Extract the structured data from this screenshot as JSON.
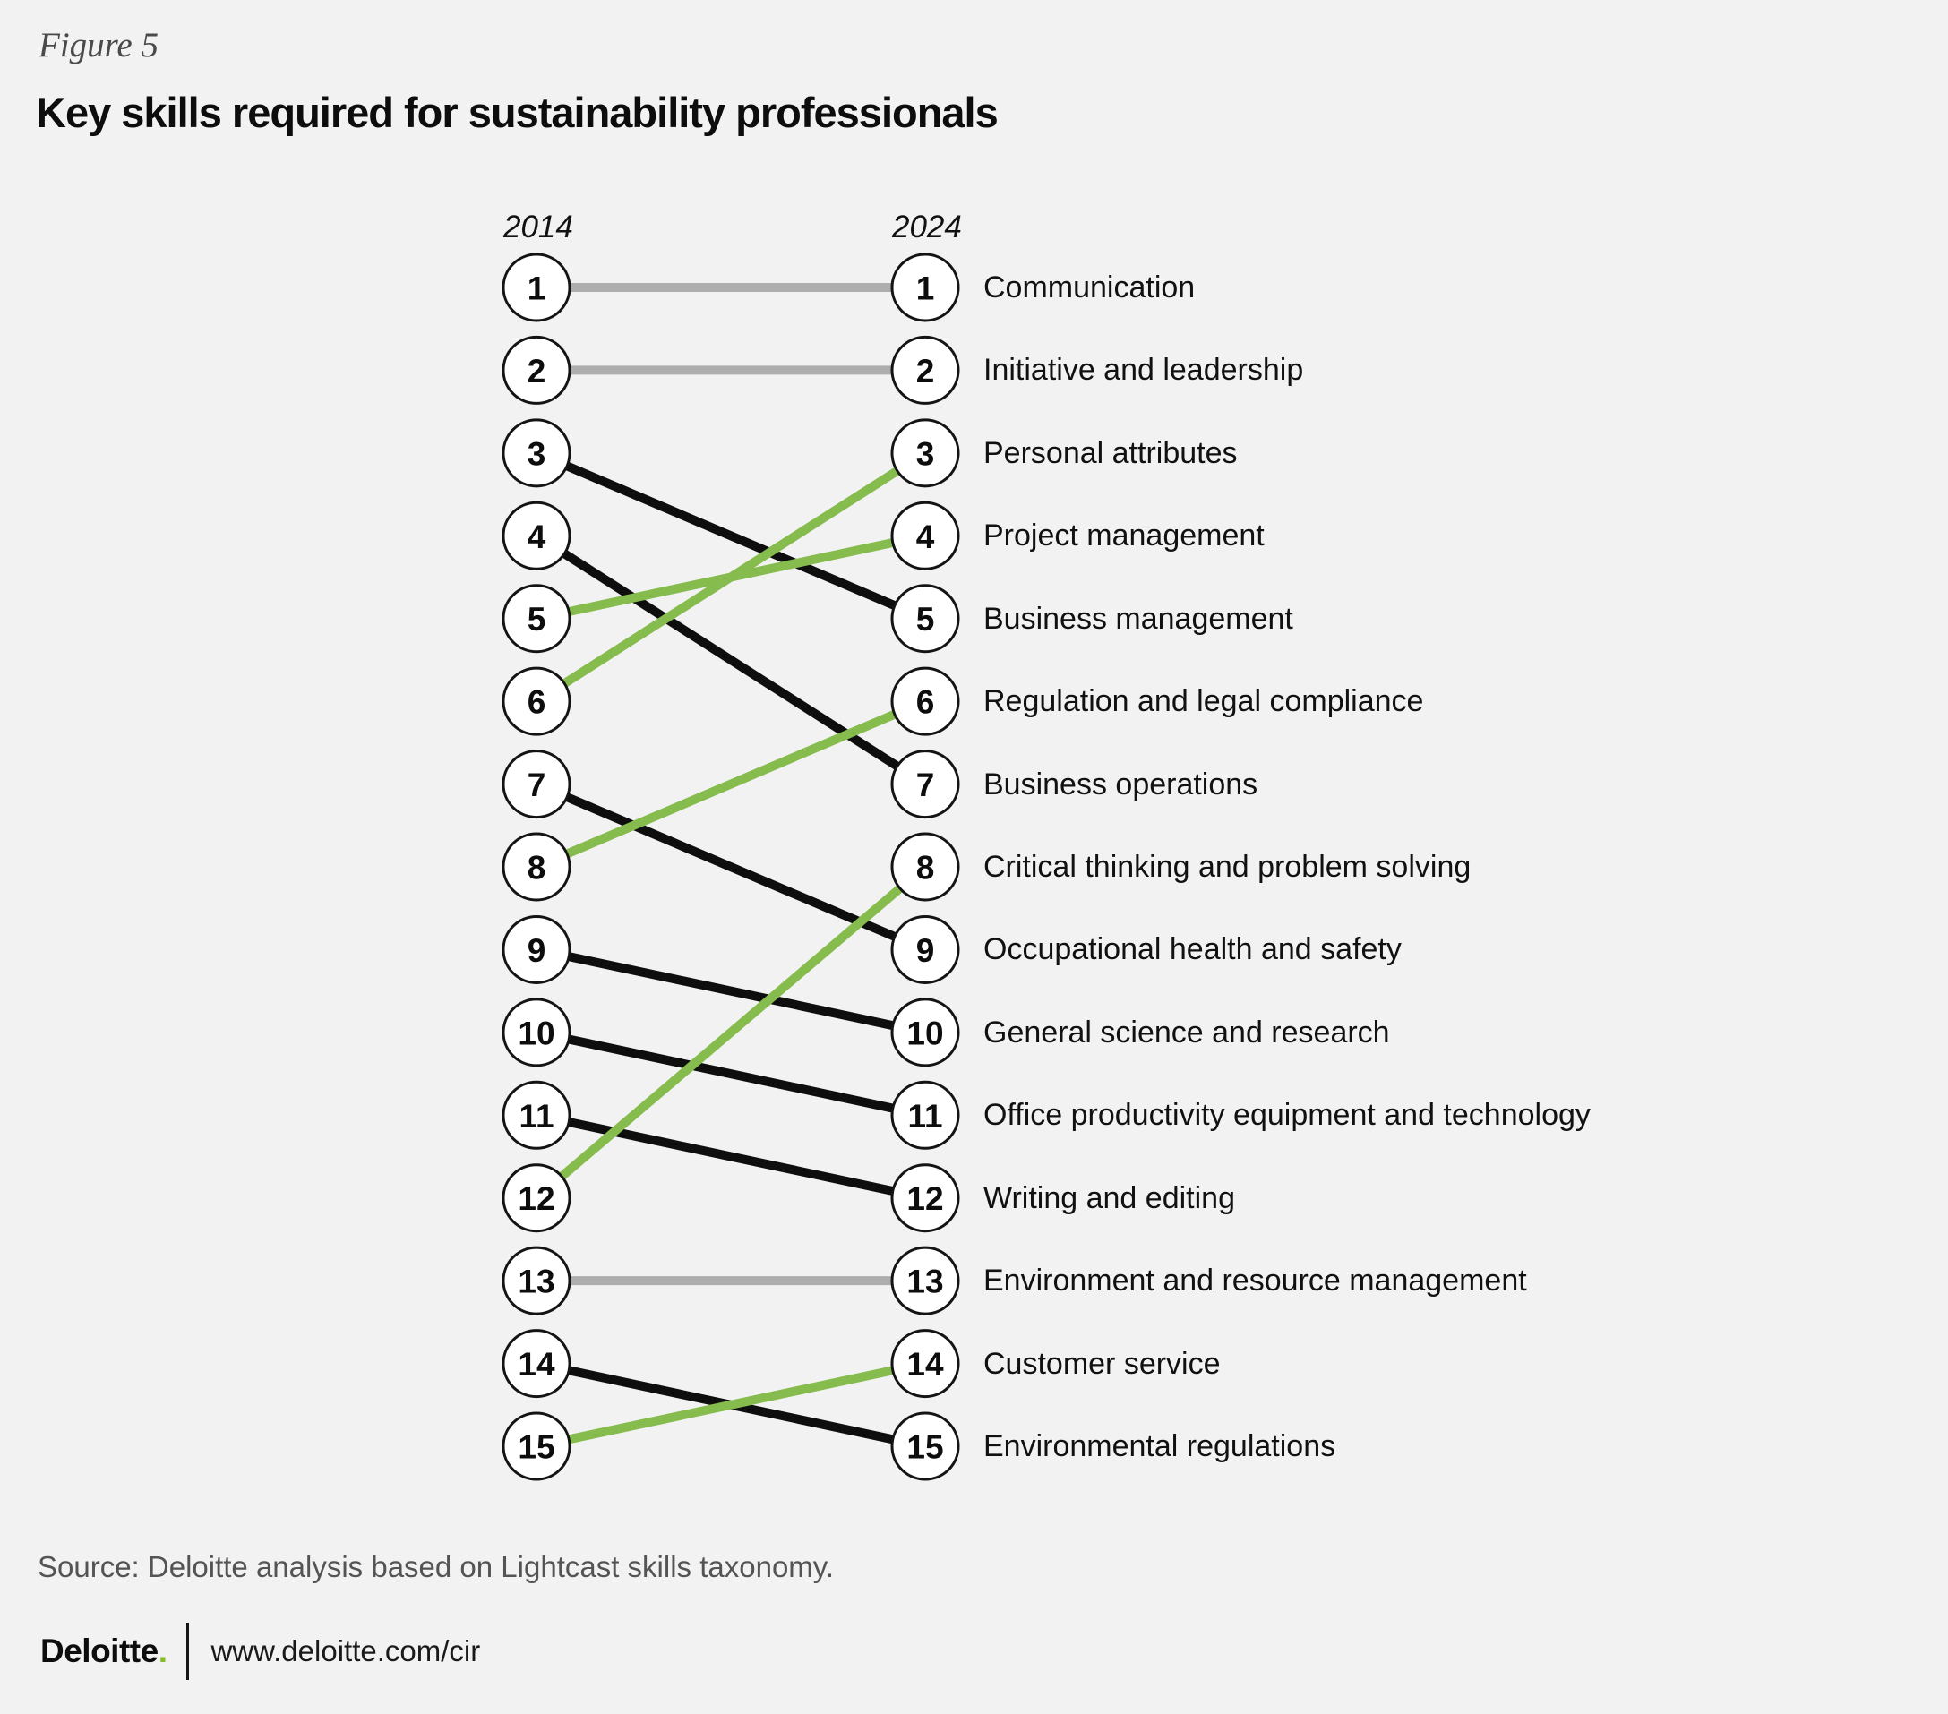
{
  "figure_label": "Figure 5",
  "title": "Key skills required for sustainability professionals",
  "chart_data": {
    "type": "slope",
    "left_year": "2014",
    "right_year": "2024",
    "description": "Skill rank in 2014 vs rank in 2024; green = rank improved, black = rank declined, gray = unchanged",
    "skills": [
      {
        "label": "Communication",
        "rank_2014": 1,
        "rank_2024": 1,
        "trend": "same"
      },
      {
        "label": "Initiative and leadership",
        "rank_2014": 2,
        "rank_2024": 2,
        "trend": "same"
      },
      {
        "label": "Personal attributes",
        "rank_2014": 6,
        "rank_2024": 3,
        "trend": "up"
      },
      {
        "label": "Project management",
        "rank_2014": 5,
        "rank_2024": 4,
        "trend": "up"
      },
      {
        "label": "Business management",
        "rank_2014": 3,
        "rank_2024": 5,
        "trend": "down"
      },
      {
        "label": "Regulation and legal compliance",
        "rank_2014": 8,
        "rank_2024": 6,
        "trend": "up"
      },
      {
        "label": "Business operations",
        "rank_2014": 4,
        "rank_2024": 7,
        "trend": "down"
      },
      {
        "label": "Critical thinking and problem solving",
        "rank_2014": 12,
        "rank_2024": 8,
        "trend": "up"
      },
      {
        "label": "Occupational health and safety",
        "rank_2014": 7,
        "rank_2024": 9,
        "trend": "down"
      },
      {
        "label": "General science and research",
        "rank_2014": 9,
        "rank_2024": 10,
        "trend": "down"
      },
      {
        "label": "Office productivity equipment and technology",
        "rank_2014": 10,
        "rank_2024": 11,
        "trend": "down"
      },
      {
        "label": "Writing and editing",
        "rank_2014": 11,
        "rank_2024": 12,
        "trend": "down"
      },
      {
        "label": "Environment and resource management",
        "rank_2014": 13,
        "rank_2024": 13,
        "trend": "same"
      },
      {
        "label": "Customer service",
        "rank_2014": 15,
        "rank_2024": 14,
        "trend": "up"
      },
      {
        "label": "Environmental regulations",
        "rank_2014": 14,
        "rank_2024": 15,
        "trend": "down"
      }
    ],
    "colors": {
      "improved": "#86bc4e",
      "declined": "#0e0e0e",
      "unchanged": "#aeaeae",
      "circle_fill": "#ffffff",
      "circle_stroke": "#141414",
      "number": "#0d0d0d"
    }
  },
  "source_note": "Source: Deloitte analysis based on Lightcast skills taxonomy.",
  "footer": {
    "brand": "Deloitte",
    "brand_dot": ".",
    "url": "www.deloitte.com/cir",
    "brand_green": "#86bc25"
  }
}
